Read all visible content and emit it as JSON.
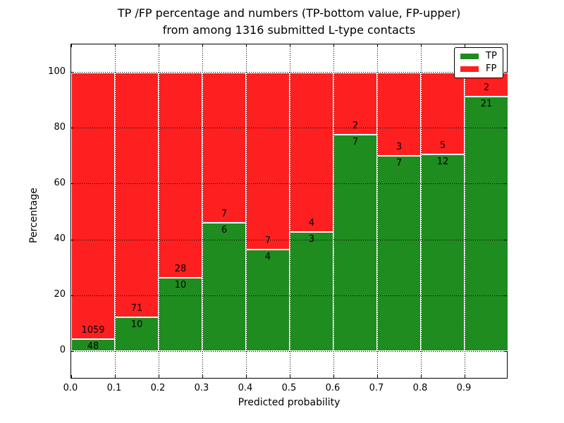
{
  "title": {
    "line1": "TP /FP percentage and numbers (TP-bottom value, FP-upper)",
    "line2": "from among 1316 submitted L-type contacts"
  },
  "chart_data": {
    "type": "bar",
    "stacked": true,
    "title": "TP /FP percentage and numbers (TP-bottom value, FP-upper) from among 1316 submitted L-type contacts",
    "xlabel": "Predicted probability",
    "ylabel": "Percentage",
    "total_contacts": 1316,
    "bin_edges": [
      0.0,
      0.1,
      0.2,
      0.3,
      0.4,
      0.5,
      0.6,
      0.7,
      0.8,
      0.9,
      1.0
    ],
    "categories": [
      "0.0-0.1",
      "0.1-0.2",
      "0.2-0.3",
      "0.3-0.4",
      "0.4-0.5",
      "0.5-0.6",
      "0.6-0.7",
      "0.7-0.8",
      "0.8-0.9",
      "0.9-1.0"
    ],
    "series": [
      {
        "name": "TP",
        "color": "#1f8c1f",
        "counts": [
          48,
          10,
          10,
          6,
          4,
          3,
          7,
          7,
          12,
          21
        ]
      },
      {
        "name": "FP",
        "color": "#fe2020",
        "counts": [
          1059,
          71,
          28,
          7,
          7,
          4,
          2,
          3,
          5,
          2
        ]
      }
    ],
    "tp_percent": [
      4.3,
      12.3,
      26.3,
      46.2,
      36.4,
      42.9,
      77.8,
      70.0,
      70.6,
      91.3
    ],
    "x_ticks": [
      "0.0",
      "0.1",
      "0.2",
      "0.3",
      "0.4",
      "0.5",
      "0.6",
      "0.7",
      "0.8",
      "0.9"
    ],
    "y_ticks": [
      "0",
      "20",
      "40",
      "60",
      "80",
      "100"
    ],
    "xlim": [
      0.0,
      1.0
    ],
    "ylim": [
      -10,
      110
    ],
    "grid": {
      "style": "dotted",
      "color": "#000000"
    },
    "legend": {
      "position": "upper-right",
      "entries": [
        {
          "label": "TP",
          "color": "#1f8c1f"
        },
        {
          "label": "FP",
          "color": "#fe2020"
        }
      ]
    }
  }
}
